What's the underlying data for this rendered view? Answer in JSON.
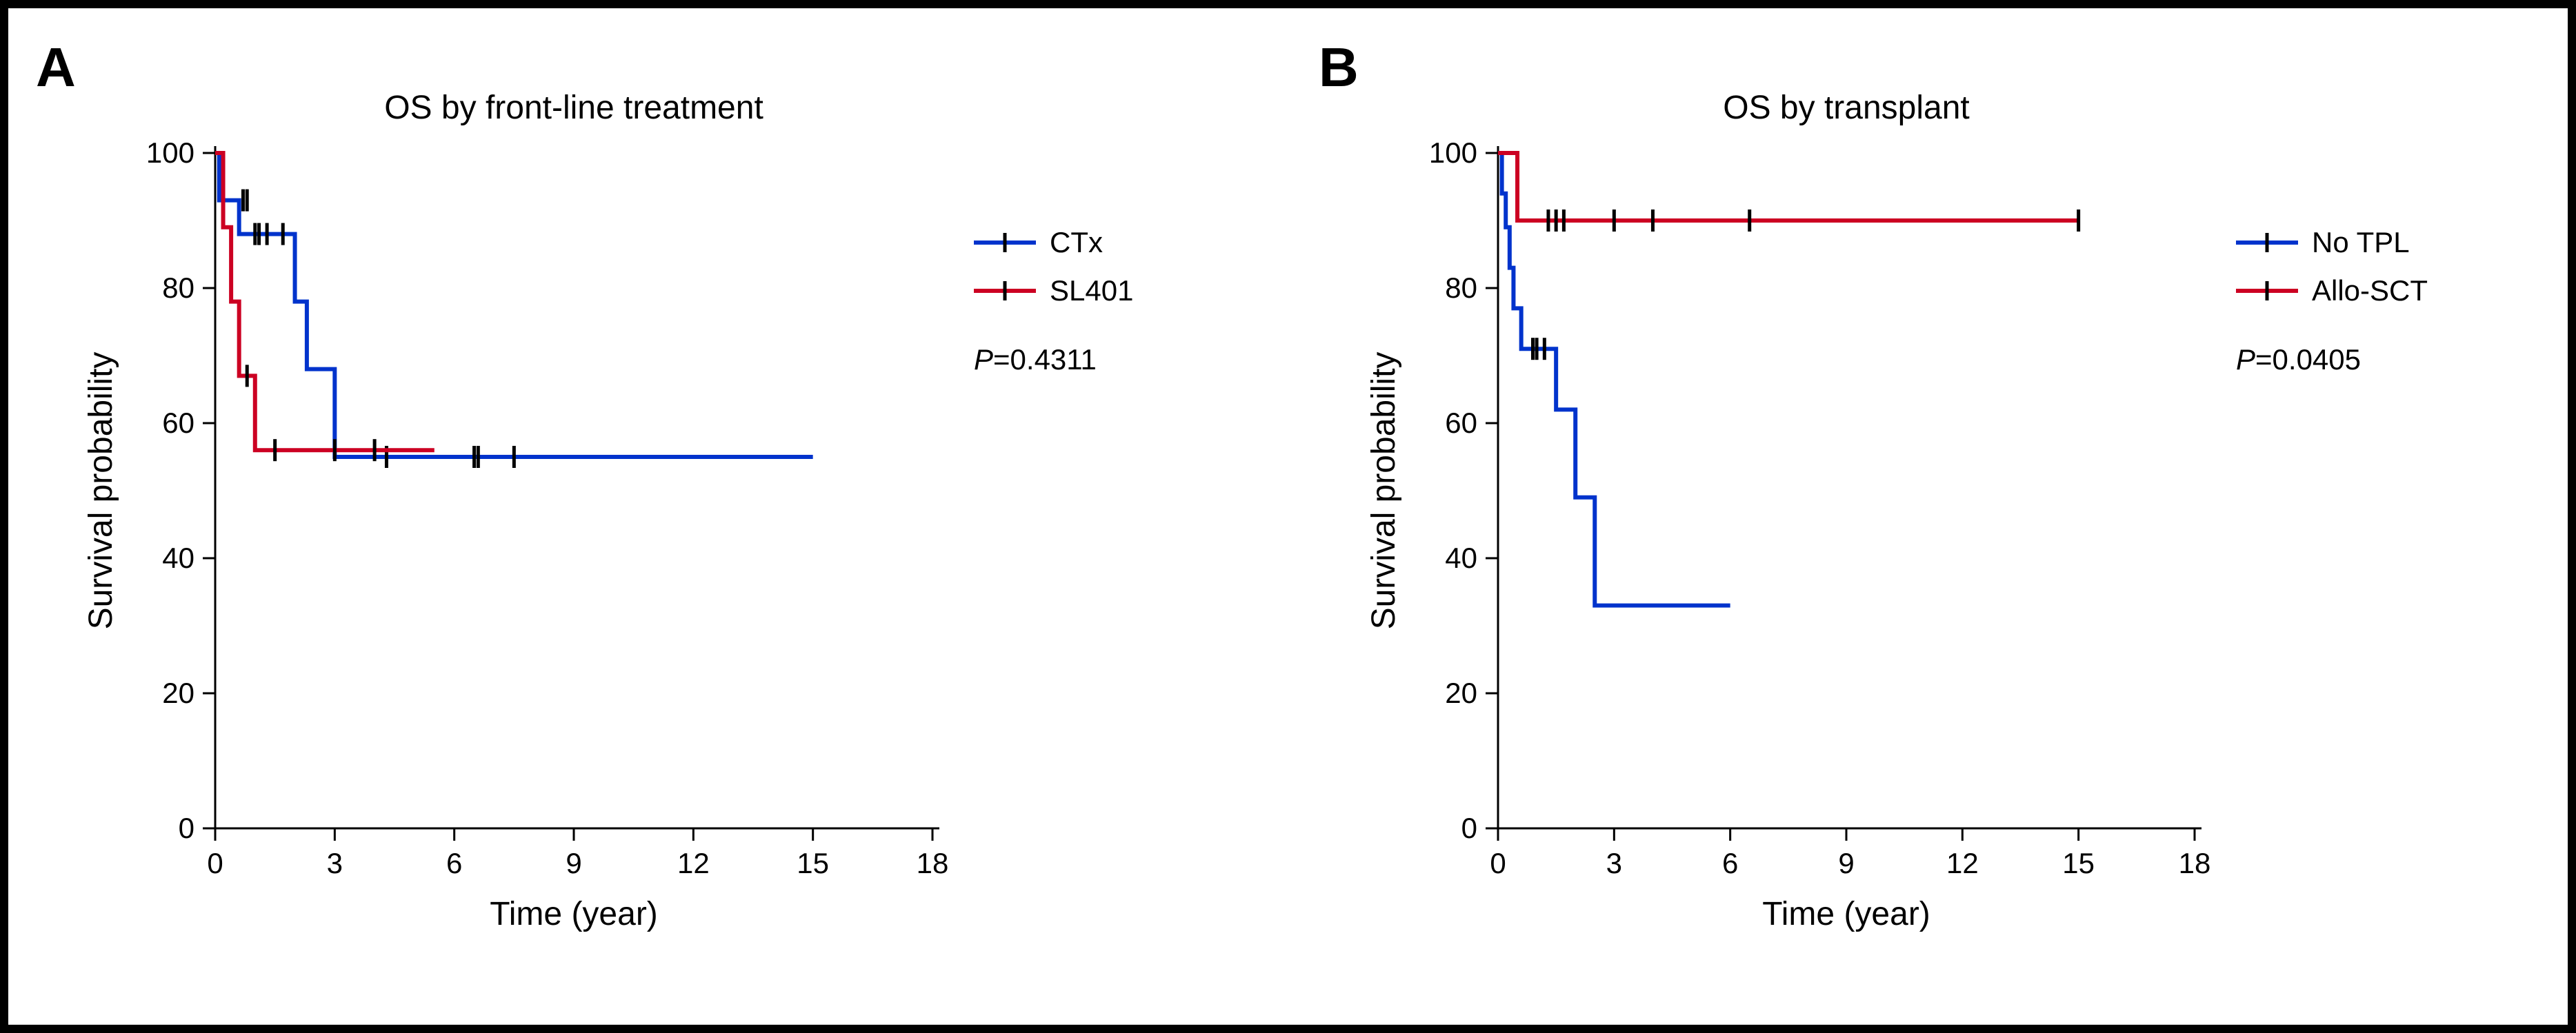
{
  "figure": {
    "border_color": "#000000",
    "background": "#ffffff",
    "panels": [
      {
        "label": "A",
        "title": "OS by front-line treatment",
        "xlabel": "Time (year)",
        "ylabel": "Survival probability",
        "xlim": [
          0,
          18
        ],
        "ylim": [
          0,
          100
        ],
        "xticks": [
          0,
          3,
          6,
          9,
          12,
          15,
          18
        ],
        "yticks": [
          0,
          20,
          40,
          60,
          80,
          100
        ],
        "title_fontsize": 48,
        "label_fontsize": 48,
        "tick_fontsize": 42,
        "line_width": 6,
        "series": [
          {
            "name": "CTx",
            "color": "#0033cc",
            "points": [
              [
                0,
                100
              ],
              [
                0.1,
                100
              ],
              [
                0.1,
                93
              ],
              [
                0.6,
                93
              ],
              [
                0.6,
                88
              ],
              [
                2.0,
                88
              ],
              [
                2.0,
                78
              ],
              [
                2.3,
                78
              ],
              [
                2.3,
                68
              ],
              [
                3.0,
                68
              ],
              [
                3.0,
                55
              ],
              [
                15.0,
                55
              ]
            ],
            "censors": [
              [
                0.7,
                93
              ],
              [
                0.8,
                93
              ],
              [
                1.0,
                88
              ],
              [
                1.1,
                88
              ],
              [
                1.3,
                88
              ],
              [
                1.7,
                88
              ],
              [
                4.3,
                55
              ],
              [
                6.5,
                55
              ],
              [
                6.6,
                55
              ],
              [
                7.5,
                55
              ]
            ]
          },
          {
            "name": "SL401",
            "color": "#cc0022",
            "points": [
              [
                0,
                100
              ],
              [
                0.2,
                100
              ],
              [
                0.2,
                89
              ],
              [
                0.4,
                89
              ],
              [
                0.4,
                78
              ],
              [
                0.6,
                78
              ],
              [
                0.6,
                67
              ],
              [
                1.0,
                67
              ],
              [
                1.0,
                56
              ],
              [
                5.5,
                56
              ]
            ],
            "censors": [
              [
                0.8,
                67
              ],
              [
                1.5,
                56
              ],
              [
                3.0,
                56
              ],
              [
                4.0,
                56
              ]
            ]
          }
        ],
        "legend": {
          "items": [
            "CTx",
            "SL401"
          ],
          "colors": [
            "#0033cc",
            "#cc0022"
          ],
          "pvalue_label": "P",
          "pvalue": "=0.4311"
        }
      },
      {
        "label": "B",
        "title": "OS by transplant",
        "xlabel": "Time (year)",
        "ylabel": "Survival probability",
        "xlim": [
          0,
          18
        ],
        "ylim": [
          0,
          100
        ],
        "xticks": [
          0,
          3,
          6,
          9,
          12,
          15,
          18
        ],
        "yticks": [
          0,
          20,
          40,
          60,
          80,
          100
        ],
        "title_fontsize": 48,
        "label_fontsize": 48,
        "tick_fontsize": 42,
        "line_width": 6,
        "series": [
          {
            "name": "No TPL",
            "color": "#0033cc",
            "points": [
              [
                0,
                100
              ],
              [
                0.1,
                100
              ],
              [
                0.1,
                94
              ],
              [
                0.2,
                94
              ],
              [
                0.2,
                89
              ],
              [
                0.3,
                89
              ],
              [
                0.3,
                83
              ],
              [
                0.4,
                83
              ],
              [
                0.4,
                77
              ],
              [
                0.6,
                77
              ],
              [
                0.6,
                71
              ],
              [
                1.5,
                71
              ],
              [
                1.5,
                62
              ],
              [
                2.0,
                62
              ],
              [
                2.0,
                49
              ],
              [
                2.5,
                49
              ],
              [
                2.5,
                33
              ],
              [
                6.0,
                33
              ]
            ],
            "censors": [
              [
                0.9,
                71
              ],
              [
                1.0,
                71
              ],
              [
                1.2,
                71
              ]
            ]
          },
          {
            "name": "Allo-SCT",
            "color": "#cc0022",
            "points": [
              [
                0,
                100
              ],
              [
                0.5,
                100
              ],
              [
                0.5,
                90
              ],
              [
                15.0,
                90
              ]
            ],
            "censors": [
              [
                1.3,
                90
              ],
              [
                1.5,
                90
              ],
              [
                1.7,
                90
              ],
              [
                3.0,
                90
              ],
              [
                4.0,
                90
              ],
              [
                6.5,
                90
              ],
              [
                15.0,
                90
              ]
            ]
          }
        ],
        "legend": {
          "items": [
            "No TPL",
            "Allo-SCT"
          ],
          "colors": [
            "#0033cc",
            "#cc0022"
          ],
          "pvalue_label": "P",
          "pvalue": "=0.0405"
        }
      }
    ]
  }
}
